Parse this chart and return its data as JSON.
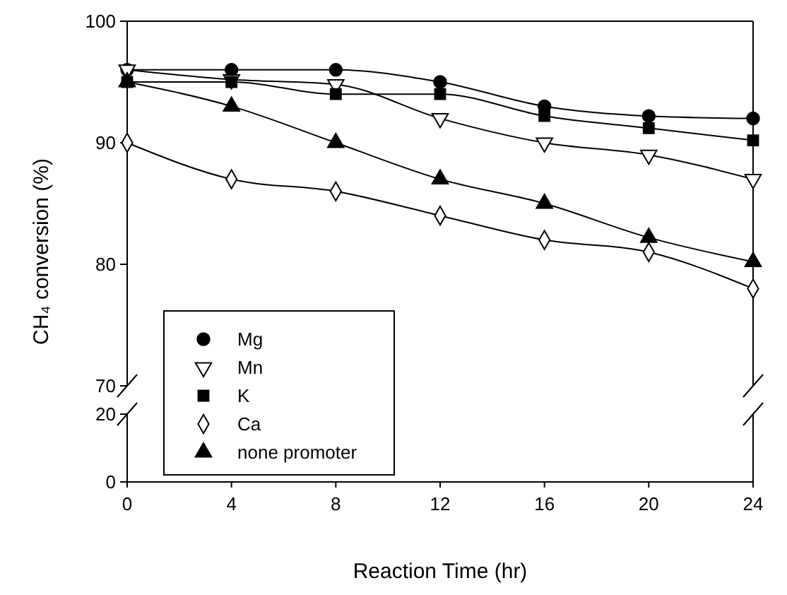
{
  "chart_data": [
    {
      "type": "line",
      "ylabel": "CH₄ conversion (%)",
      "x": [
        0,
        4,
        8,
        12,
        16,
        20,
        24
      ],
      "xlim": [
        0,
        24
      ],
      "ylim": [
        70,
        100
      ],
      "yticks": [
        70,
        80,
        90,
        100
      ],
      "tick_labels": "y",
      "grid": false,
      "legend": "bottom left",
      "line_style": "solid",
      "series": [
        {
          "name": "Mg",
          "color": "#000000",
          "marker": "circle",
          "values": [
            96,
            96,
            96,
            95,
            93,
            92.2,
            92
          ]
        },
        {
          "name": "Mn",
          "color": "#ffffff",
          "marker": "triangle-down",
          "values": [
            96,
            95.2,
            94.8,
            92,
            90,
            89,
            87
          ]
        },
        {
          "name": "K",
          "color": "#000000",
          "marker": "square",
          "values": [
            95,
            95,
            94,
            94,
            92.2,
            91.2,
            90.2
          ]
        },
        {
          "name": "Ca",
          "color": "#ffffff",
          "marker": "diamond",
          "values": [
            90,
            87,
            86,
            84,
            82,
            81,
            78
          ]
        },
        {
          "name": "none promoter",
          "color": "#000000",
          "marker": "triangle",
          "values": [
            95,
            93,
            90,
            87,
            85,
            82.2,
            80.2
          ]
        }
      ]
    },
    {
      "type": "line",
      "xlabel": "Reaction Time (hr)",
      "xlim": [
        0,
        24
      ],
      "xticks": [
        0,
        4,
        8,
        12,
        16,
        20,
        24
      ],
      "ylim": [
        0,
        20
      ],
      "yticks": [
        0,
        20
      ]
    }
  ]
}
